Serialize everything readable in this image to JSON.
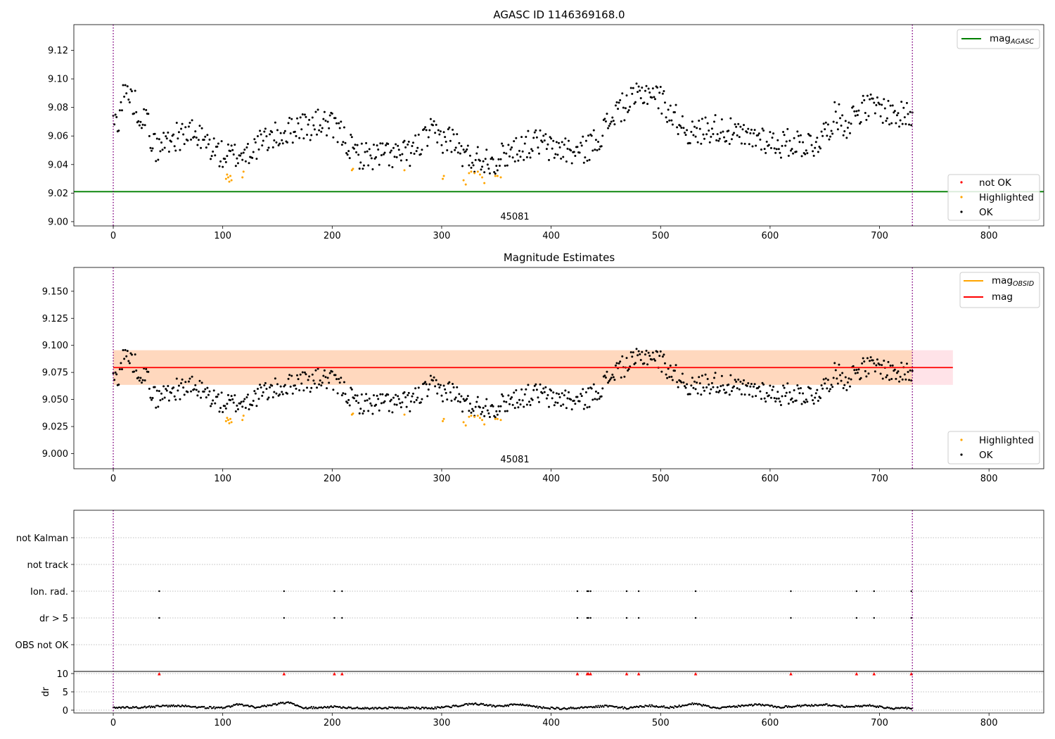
{
  "chart_data": [
    {
      "type": "scatter",
      "title": "AGASC ID 1146369168.0",
      "xlim": [
        -36,
        850
      ],
      "ylim": [
        8.997,
        9.138
      ],
      "xticks": [
        0,
        100,
        200,
        300,
        400,
        500,
        600,
        700,
        800
      ],
      "yticks": [
        9.0,
        9.02,
        9.04,
        9.06,
        9.08,
        9.1,
        9.12
      ],
      "yticklabels": [
        "9.00",
        "9.02",
        "9.04",
        "9.06",
        "9.08",
        "9.10",
        "9.12"
      ],
      "grid": false,
      "obsid_label": "45081",
      "obsid_label_x": 365,
      "vlines": [
        0,
        730
      ],
      "hline": {
        "name": "mag_AGASC",
        "y": 9.021,
        "color": "#008000",
        "x_range": [
          -36,
          850
        ]
      },
      "legend_top": {
        "placement": "upper-right",
        "entries": [
          {
            "base": "mag",
            "sub": "AGASC",
            "color": "#008000",
            "kind": "line"
          }
        ]
      },
      "legend_bottom": {
        "placement": "lower-right",
        "entries": [
          {
            "label": "not OK",
            "color": "#ff0000",
            "kind": "dot"
          },
          {
            "label": "Highlighted",
            "color": "#ffa500",
            "kind": "dot"
          },
          {
            "label": "OK",
            "color": "#000000",
            "kind": "dot"
          }
        ]
      },
      "series_ok": {
        "name": "OK",
        "color": "#000000",
        "knots": [
          [
            0,
            9.068
          ],
          [
            5,
            9.073
          ],
          [
            10,
            9.092
          ],
          [
            15,
            9.088
          ],
          [
            20,
            9.082
          ],
          [
            25,
            9.075
          ],
          [
            30,
            9.072
          ],
          [
            35,
            9.058
          ],
          [
            40,
            9.05
          ],
          [
            50,
            9.058
          ],
          [
            60,
            9.06
          ],
          [
            70,
            9.062
          ],
          [
            80,
            9.058
          ],
          [
            90,
            9.052
          ],
          [
            100,
            9.046
          ],
          [
            110,
            9.046
          ],
          [
            120,
            9.048
          ],
          [
            130,
            9.052
          ],
          [
            140,
            9.058
          ],
          [
            150,
            9.06
          ],
          [
            160,
            9.063
          ],
          [
            170,
            9.068
          ],
          [
            180,
            9.066
          ],
          [
            190,
            9.07
          ],
          [
            200,
            9.066
          ],
          [
            210,
            9.06
          ],
          [
            220,
            9.048
          ],
          [
            230,
            9.046
          ],
          [
            240,
            9.046
          ],
          [
            250,
            9.048
          ],
          [
            260,
            9.046
          ],
          [
            270,
            9.048
          ],
          [
            280,
            9.054
          ],
          [
            290,
            9.062
          ],
          [
            300,
            9.058
          ],
          [
            310,
            9.058
          ],
          [
            320,
            9.046
          ],
          [
            330,
            9.044
          ],
          [
            340,
            9.044
          ],
          [
            350,
            9.043
          ],
          [
            360,
            9.048
          ],
          [
            370,
            9.052
          ],
          [
            380,
            9.054
          ],
          [
            390,
            9.056
          ],
          [
            400,
            9.05
          ],
          [
            410,
            9.052
          ],
          [
            420,
            9.048
          ],
          [
            430,
            9.05
          ],
          [
            440,
            9.056
          ],
          [
            450,
            9.066
          ],
          [
            460,
            9.078
          ],
          [
            470,
            9.082
          ],
          [
            480,
            9.088
          ],
          [
            490,
            9.092
          ],
          [
            500,
            9.086
          ],
          [
            510,
            9.075
          ],
          [
            520,
            9.068
          ],
          [
            530,
            9.06
          ],
          [
            540,
            9.065
          ],
          [
            550,
            9.066
          ],
          [
            560,
            9.064
          ],
          [
            570,
            9.06
          ],
          [
            580,
            9.058
          ],
          [
            590,
            9.06
          ],
          [
            600,
            9.056
          ],
          [
            610,
            9.054
          ],
          [
            620,
            9.056
          ],
          [
            630,
            9.055
          ],
          [
            640,
            9.054
          ],
          [
            650,
            9.062
          ],
          [
            660,
            9.075
          ],
          [
            670,
            9.068
          ],
          [
            680,
            9.078
          ],
          [
            690,
            9.08
          ],
          [
            700,
            9.08
          ],
          [
            710,
            9.076
          ],
          [
            720,
            9.074
          ],
          [
            730,
            9.076
          ]
        ]
      },
      "series_highlighted": {
        "name": "Highlighted",
        "color": "#ffa500",
        "points": [
          [
            103,
            9.03
          ],
          [
            104,
            9.033
          ],
          [
            105,
            9.031
          ],
          [
            106,
            9.028
          ],
          [
            107,
            9.032
          ],
          [
            108,
            9.029
          ],
          [
            118,
            9.031
          ],
          [
            119,
            9.035
          ],
          [
            218,
            9.036
          ],
          [
            219,
            9.037
          ],
          [
            266,
            9.036
          ],
          [
            301,
            9.03
          ],
          [
            302,
            9.032
          ],
          [
            320,
            9.029
          ],
          [
            322,
            9.026
          ],
          [
            325,
            9.034
          ],
          [
            327,
            9.035
          ],
          [
            330,
            9.034
          ],
          [
            333,
            9.035
          ],
          [
            335,
            9.033
          ],
          [
            337,
            9.031
          ],
          [
            339,
            9.027
          ],
          [
            349,
            9.032
          ],
          [
            351,
            9.032
          ],
          [
            354,
            9.031
          ]
        ]
      },
      "series_notok": {
        "name": "not OK",
        "color": "#ff0000",
        "points": []
      }
    },
    {
      "type": "scatter",
      "title": "Magnitude Estimates",
      "xlim": [
        -36,
        850
      ],
      "ylim": [
        8.986,
        9.172
      ],
      "xticks": [
        0,
        100,
        200,
        300,
        400,
        500,
        600,
        700,
        800
      ],
      "yticks": [
        9.0,
        9.025,
        9.05,
        9.075,
        9.1,
        9.125,
        9.15
      ],
      "yticklabels": [
        "9.000",
        "9.025",
        "9.050",
        "9.075",
        "9.100",
        "9.125",
        "9.150"
      ],
      "grid": false,
      "obsid_label": "45081",
      "obsid_label_x": 365,
      "vlines": [
        0,
        730
      ],
      "mag_line": {
        "name": "mag",
        "y": 9.0795,
        "color": "#ff0000",
        "x_range": [
          0,
          767
        ]
      },
      "mag_band": {
        "low": 9.0635,
        "high": 9.0955,
        "x_range": [
          0,
          767
        ],
        "color": "#ffc0cb"
      },
      "obsid_band": {
        "name": "mag_OBSID",
        "low": 9.0635,
        "high": 9.0955,
        "x_range": [
          0,
          730
        ],
        "color": "#ffa500"
      },
      "legend_top": {
        "placement": "upper-right",
        "entries": [
          {
            "base": "mag",
            "sub": "OBSID",
            "color": "#ffa500",
            "kind": "line"
          },
          {
            "base": "mag",
            "sub": "",
            "color": "#ff0000",
            "kind": "line"
          }
        ]
      },
      "legend_bottom": {
        "placement": "lower-right",
        "entries": [
          {
            "label": "Highlighted",
            "color": "#ffa500",
            "kind": "dot"
          },
          {
            "label": "OK",
            "color": "#000000",
            "kind": "dot"
          }
        ]
      }
    },
    {
      "type": "scatter",
      "title": "",
      "xlim": [
        -36,
        850
      ],
      "xticks": [
        0,
        100,
        200,
        300,
        400,
        500,
        600,
        700,
        800
      ],
      "vlines": [
        0,
        730
      ],
      "flag_rows": [
        "not Kalman",
        "not track",
        "Ion. rad.",
        "dr > 5",
        "OBS not OK"
      ],
      "flag_points": {
        "Ion. rad.": [
          42,
          156,
          202,
          209,
          424,
          433,
          434,
          436,
          469,
          480,
          532,
          619,
          679,
          695,
          729
        ],
        "dr > 5": [
          42,
          156,
          202,
          209,
          424,
          433,
          434,
          436,
          469,
          480,
          532,
          619,
          679,
          695,
          729
        ]
      },
      "dr_panel": {
        "ylabel": "dr",
        "yticks": [
          0,
          5,
          10
        ],
        "ylim": [
          -0.5,
          10.5
        ],
        "clipped_marker_color": "#ff0000",
        "clipped_points": [
          42,
          156,
          202,
          209,
          424,
          433,
          434,
          436,
          469,
          480,
          532,
          619,
          679,
          695,
          729
        ],
        "knots": [
          [
            0,
            0.6
          ],
          [
            20,
            0.7
          ],
          [
            40,
            1.0
          ],
          [
            60,
            1.2
          ],
          [
            80,
            0.8
          ],
          [
            100,
            0.6
          ],
          [
            115,
            1.6
          ],
          [
            130,
            0.8
          ],
          [
            145,
            1.4
          ],
          [
            160,
            2.2
          ],
          [
            175,
            0.6
          ],
          [
            200,
            0.9
          ],
          [
            230,
            0.5
          ],
          [
            260,
            0.7
          ],
          [
            290,
            0.5
          ],
          [
            310,
            1.0
          ],
          [
            330,
            1.8
          ],
          [
            350,
            1.0
          ],
          [
            370,
            1.6
          ],
          [
            390,
            0.7
          ],
          [
            410,
            0.4
          ],
          [
            430,
            0.8
          ],
          [
            450,
            1.1
          ],
          [
            470,
            0.5
          ],
          [
            490,
            1.2
          ],
          [
            510,
            0.7
          ],
          [
            530,
            1.8
          ],
          [
            550,
            0.6
          ],
          [
            570,
            1.0
          ],
          [
            590,
            1.5
          ],
          [
            610,
            0.8
          ],
          [
            630,
            1.2
          ],
          [
            650,
            1.5
          ],
          [
            670,
            0.9
          ],
          [
            690,
            1.3
          ],
          [
            710,
            0.5
          ],
          [
            730,
            0.6
          ]
        ]
      }
    }
  ]
}
